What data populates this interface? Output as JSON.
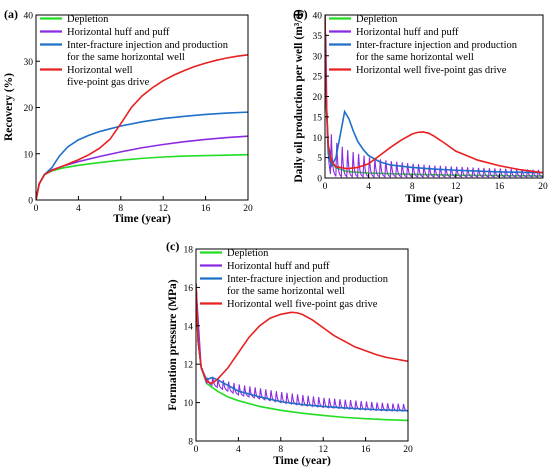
{
  "chart_data": [
    {
      "type": "line",
      "panel_label": "(a)",
      "xlabel": "Time (year)",
      "ylabel": "Recovery (%)",
      "xlim": [
        0,
        20
      ],
      "ylim": [
        0,
        40
      ],
      "xticks": [
        "0",
        "4",
        "8",
        "12",
        "16",
        "20"
      ],
      "yticks": [
        "0",
        "10",
        "20",
        "30",
        "40"
      ],
      "legend_position": "top-left",
      "series": [
        {
          "name": "Depletion",
          "color": "#22dd22",
          "x": [
            0,
            0.3,
            0.8,
            1.5,
            2.5,
            4,
            6,
            8,
            10,
            12,
            14,
            16,
            18,
            20
          ],
          "y": [
            0,
            3.5,
            5.5,
            6.3,
            6.9,
            7.5,
            8.1,
            8.6,
            9.0,
            9.3,
            9.5,
            9.6,
            9.7,
            9.8
          ]
        },
        {
          "name": "Horizontal huff and puff",
          "color": "#8a2be2",
          "x": [
            0,
            0.3,
            0.8,
            1.5,
            2.5,
            4,
            6,
            8,
            10,
            12,
            14,
            16,
            18,
            20
          ],
          "y": [
            0,
            3.5,
            5.5,
            6.5,
            7.3,
            8.3,
            9.4,
            10.4,
            11.3,
            12.0,
            12.6,
            13.1,
            13.5,
            13.8
          ]
        },
        {
          "name": "Inter-fracture injection and production\nfor the same horizontal well",
          "color": "#1e6fc8",
          "x": [
            0,
            0.3,
            0.8,
            1.5,
            2.2,
            3,
            4,
            5,
            6,
            8,
            10,
            12,
            14,
            16,
            18,
            20
          ],
          "y": [
            0,
            3.5,
            5.5,
            7.0,
            9.5,
            11.5,
            13.0,
            14.0,
            14.8,
            16.0,
            16.9,
            17.6,
            18.1,
            18.5,
            18.8,
            19.0
          ]
        },
        {
          "name": "Horizontal well\nfive-point gas drive",
          "color": "#e82020",
          "x": [
            0,
            0.3,
            0.8,
            1.5,
            2.5,
            4,
            5,
            6,
            7,
            8,
            9,
            10,
            11,
            12,
            13,
            14,
            15,
            16,
            17,
            18,
            19,
            20
          ],
          "y": [
            0,
            3.5,
            5.5,
            6.4,
            7.3,
            8.7,
            9.8,
            11.2,
            13.2,
            16.5,
            20.0,
            22.5,
            24.3,
            25.8,
            27.0,
            28.0,
            28.9,
            29.6,
            30.2,
            30.7,
            31.1,
            31.4
          ]
        }
      ]
    },
    {
      "type": "line",
      "panel_label": "(b)",
      "xlabel": "Time (year)",
      "ylabel": "Daily oil production per well (m³/d)",
      "xlim": [
        0,
        20
      ],
      "ylim": [
        0,
        40
      ],
      "xticks": [
        "0",
        "4",
        "8",
        "12",
        "16",
        "20"
      ],
      "yticks": [
        "0",
        "5",
        "10",
        "15",
        "20",
        "25",
        "30",
        "35",
        "40"
      ],
      "legend_position": "top-right",
      "series": [
        {
          "name": "Depletion",
          "color": "#22dd22",
          "x": [
            0,
            0.1,
            0.3,
            0.6,
            1,
            2,
            4,
            8,
            12,
            16,
            20
          ],
          "y": [
            40,
            20,
            8,
            4,
            2.5,
            1.6,
            1.2,
            0.9,
            0.7,
            0.6,
            0.5
          ]
        },
        {
          "name": "Horizontal huff and puff",
          "color": "#8a2be2",
          "oscillating": true,
          "oscillation_period_years": 0.5,
          "envelope_x": [
            0,
            0.2,
            0.5,
            1,
            1.5,
            2,
            3,
            4,
            6,
            8,
            10,
            12,
            14,
            16,
            18,
            20
          ],
          "envelope_max": [
            40,
            30,
            12,
            9.5,
            8.5,
            7.5,
            6.5,
            5.5,
            4.5,
            3.8,
            3.3,
            3.0,
            2.7,
            2.5,
            2.3,
            2.1
          ],
          "envelope_min": [
            40,
            5,
            1,
            0.4,
            0.3,
            0.3,
            0.3,
            0.3,
            0.3,
            0.3,
            0.3,
            0.3,
            0.3,
            0.3,
            0.3,
            0.3
          ]
        },
        {
          "name": "Inter-fracture injection and production\nfor the same horizontal well",
          "color": "#1e6fc8",
          "x": [
            0,
            0.1,
            0.3,
            0.6,
            1,
            1.5,
            1.8,
            2.2,
            2.6,
            3,
            3.5,
            4,
            5,
            6,
            8,
            10,
            12,
            14,
            16,
            18,
            20
          ],
          "y": [
            40,
            20,
            6,
            3,
            5,
            12,
            16.3,
            14.5,
            11.5,
            9,
            7,
            5.5,
            4,
            3.2,
            2.6,
            2.2,
            1.9,
            1.7,
            1.5,
            1.4,
            1.3
          ]
        },
        {
          "name": "Horizontal well five-point gas drive",
          "color": "#e82020",
          "x": [
            0,
            0.1,
            0.3,
            0.6,
            1,
            2,
            3,
            4,
            5,
            6,
            7,
            8,
            8.5,
            9,
            9.5,
            10,
            11,
            12,
            14,
            16,
            18,
            20
          ],
          "y": [
            40,
            20,
            8,
            4,
            2.8,
            2.3,
            2.6,
            3.5,
            5.5,
            7.5,
            9.3,
            10.8,
            11.2,
            11.3,
            11.0,
            10.3,
            8.5,
            6.6,
            4.4,
            3.0,
            2.0,
            1.3
          ]
        }
      ]
    },
    {
      "type": "line",
      "panel_label": "(c)",
      "xlabel": "Time (year)",
      "ylabel": "Formation pressure (MPa)",
      "xlim": [
        0,
        20
      ],
      "ylim": [
        8,
        18
      ],
      "xticks": [
        "0",
        "4",
        "8",
        "12",
        "16",
        "20"
      ],
      "yticks": [
        "8",
        "10",
        "12",
        "14",
        "16",
        "18"
      ],
      "legend_position": "top-left",
      "series": [
        {
          "name": "Depletion",
          "color": "#22dd22",
          "x": [
            0,
            0.2,
            0.5,
            1,
            2,
            3,
            4,
            6,
            8,
            10,
            12,
            14,
            16,
            18,
            20
          ],
          "y": [
            16.2,
            13.2,
            11.8,
            11.0,
            10.6,
            10.3,
            10.1,
            9.8,
            9.6,
            9.45,
            9.33,
            9.23,
            9.16,
            9.11,
            9.07
          ]
        },
        {
          "name": "Horizontal huff and puff",
          "color": "#8a2be2",
          "oscillating": true,
          "oscillation_period_years": 0.5,
          "envelope_x": [
            0,
            0.5,
            1,
            1.5,
            2,
            4,
            6,
            8,
            10,
            12,
            14,
            16,
            18,
            20
          ],
          "envelope_max": [
            16.2,
            11.9,
            11.3,
            11.4,
            11.3,
            11.0,
            10.8,
            10.6,
            10.45,
            10.3,
            10.2,
            10.1,
            10.0,
            9.95
          ],
          "envelope_min": [
            16.2,
            11.8,
            11.0,
            10.9,
            10.8,
            10.4,
            10.2,
            10.0,
            9.85,
            9.75,
            9.68,
            9.62,
            9.57,
            9.55
          ]
        },
        {
          "name": "Inter-fracture injection and production\nfor the same horizontal well",
          "color": "#1e6fc8",
          "x": [
            0,
            0.2,
            0.5,
            1,
            1.5,
            2,
            3,
            4,
            6,
            8,
            10,
            12,
            14,
            16,
            18,
            20
          ],
          "y": [
            16.2,
            13.2,
            11.8,
            11.2,
            11.3,
            11.2,
            10.9,
            10.6,
            10.3,
            10.05,
            9.9,
            9.8,
            9.72,
            9.66,
            9.61,
            9.58
          ]
        },
        {
          "name": "Horizontal well five-point gas drive",
          "color": "#e82020",
          "x": [
            0,
            0.2,
            0.5,
            1,
            1.5,
            2,
            3,
            4,
            5,
            6,
            7,
            8,
            9,
            9.5,
            10,
            11,
            12,
            13,
            14,
            15,
            16,
            17,
            18,
            19,
            20
          ],
          "y": [
            16.2,
            13.2,
            11.8,
            11.1,
            11.0,
            11.2,
            11.8,
            12.6,
            13.4,
            14.0,
            14.4,
            14.6,
            14.7,
            14.68,
            14.6,
            14.3,
            13.9,
            13.5,
            13.2,
            12.9,
            12.7,
            12.5,
            12.35,
            12.25,
            12.15
          ]
        }
      ]
    }
  ]
}
